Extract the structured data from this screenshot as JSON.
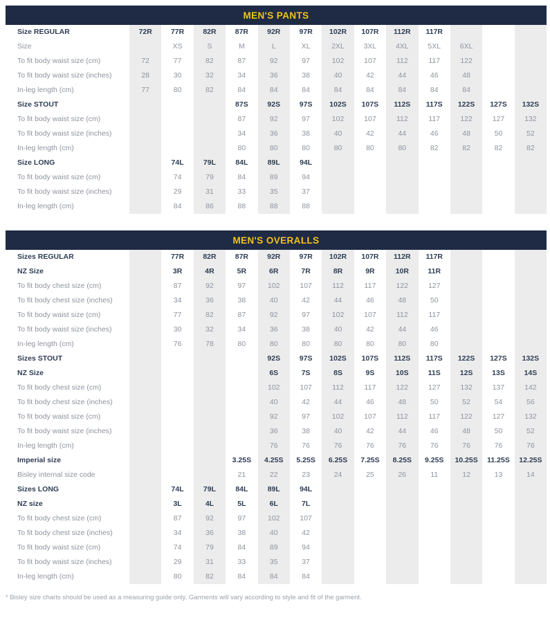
{
  "colors": {
    "header_bg": "#1f2a44",
    "header_text": "#f2c318",
    "bold_text": "#2e3d54",
    "muted_text": "#8e939d",
    "stripe": "#ececec"
  },
  "footnote": "* Bisley size charts should be used as a measuring guide only. Garments will vary according to style and fit of the garment.",
  "tables": [
    {
      "title": "MEN'S PANTS",
      "rows": [
        {
          "label": "Size REGULAR",
          "header": true,
          "values": [
            "72R",
            "77R",
            "82R",
            "87R",
            "92R",
            "97R",
            "102R",
            "107R",
            "112R",
            "117R",
            "",
            "",
            ""
          ]
        },
        {
          "label": "Size",
          "header": false,
          "values": [
            "",
            "XS",
            "S",
            "M",
            "L",
            "XL",
            "2XL",
            "3XL",
            "4XL",
            "5XL",
            "6XL",
            "",
            ""
          ]
        },
        {
          "label": "To fit body waist size (cm)",
          "header": false,
          "values": [
            "72",
            "77",
            "82",
            "87",
            "92",
            "97",
            "102",
            "107",
            "112",
            "117",
            "122",
            "",
            ""
          ]
        },
        {
          "label": "To fit body waist size (inches)",
          "header": false,
          "values": [
            "28",
            "30",
            "32",
            "34",
            "36",
            "38",
            "40",
            "42",
            "44",
            "46",
            "48",
            "",
            ""
          ]
        },
        {
          "label": "In-leg length (cm)",
          "header": false,
          "values": [
            "77",
            "80",
            "82",
            "84",
            "84",
            "84",
            "84",
            "84",
            "84",
            "84",
            "84",
            "",
            ""
          ]
        },
        {
          "label": "Size STOUT",
          "header": true,
          "values": [
            "",
            "",
            "",
            "87S",
            "92S",
            "97S",
            "102S",
            "107S",
            "112S",
            "117S",
            "122S",
            "127S",
            "132S"
          ]
        },
        {
          "label": "To fit body waist size (cm)",
          "header": false,
          "values": [
            "",
            "",
            "",
            "87",
            "92",
            "97",
            "102",
            "107",
            "112",
            "117",
            "122",
            "127",
            "132"
          ]
        },
        {
          "label": "To fit body waist size (inches)",
          "header": false,
          "values": [
            "",
            "",
            "",
            "34",
            "36",
            "38",
            "40",
            "42",
            "44",
            "46",
            "48",
            "50",
            "52"
          ]
        },
        {
          "label": "In-leg length (cm)",
          "header": false,
          "values": [
            "",
            "",
            "",
            "80",
            "80",
            "80",
            "80",
            "80",
            "80",
            "82",
            "82",
            "82",
            "82"
          ]
        },
        {
          "label": "Size LONG",
          "header": true,
          "values": [
            "",
            "74L",
            "79L",
            "84L",
            "89L",
            "94L",
            "",
            "",
            "",
            "",
            "",
            "",
            ""
          ]
        },
        {
          "label": "To fit body waist size (cm)",
          "header": false,
          "values": [
            "",
            "74",
            "79",
            "84",
            "89",
            "94",
            "",
            "",
            "",
            "",
            "",
            "",
            ""
          ]
        },
        {
          "label": "To fit body waist size (inches)",
          "header": false,
          "values": [
            "",
            "29",
            "31",
            "33",
            "35",
            "37",
            "",
            "",
            "",
            "",
            "",
            "",
            ""
          ]
        },
        {
          "label": "In-leg length (cm)",
          "header": false,
          "values": [
            "",
            "84",
            "86",
            "88",
            "88",
            "88",
            "",
            "",
            "",
            "",
            "",
            "",
            ""
          ]
        }
      ]
    },
    {
      "title": "MEN'S OVERALLS",
      "rows": [
        {
          "label": "Sizes REGULAR",
          "header": true,
          "values": [
            "",
            "77R",
            "82R",
            "87R",
            "92R",
            "97R",
            "102R",
            "107R",
            "112R",
            "117R",
            "",
            "",
            ""
          ]
        },
        {
          "label": "NZ Size",
          "header": true,
          "values": [
            "",
            "3R",
            "4R",
            "5R",
            "6R",
            "7R",
            "8R",
            "9R",
            "10R",
            "11R",
            "",
            "",
            ""
          ]
        },
        {
          "label": "To fit body chest size (cm)",
          "header": false,
          "values": [
            "",
            "87",
            "92",
            "97",
            "102",
            "107",
            "112",
            "117",
            "122",
            "127",
            "",
            "",
            ""
          ]
        },
        {
          "label": "To fit body chest size (inches)",
          "header": false,
          "values": [
            "",
            "34",
            "36",
            "38",
            "40",
            "42",
            "44",
            "46",
            "48",
            "50",
            "",
            "",
            ""
          ]
        },
        {
          "label": "To fit body waist size (cm)",
          "header": false,
          "values": [
            "",
            "77",
            "82",
            "87",
            "92",
            "97",
            "102",
            "107",
            "112",
            "117",
            "",
            "",
            ""
          ]
        },
        {
          "label": "To fit body waist size (inches)",
          "header": false,
          "values": [
            "",
            "30",
            "32",
            "34",
            "36",
            "38",
            "40",
            "42",
            "44",
            "46",
            "",
            "",
            ""
          ]
        },
        {
          "label": "In-leg length (cm)",
          "header": false,
          "values": [
            "",
            "76",
            "78",
            "80",
            "80",
            "80",
            "80",
            "80",
            "80",
            "80",
            "",
            "",
            ""
          ]
        },
        {
          "label": "Sizes STOUT",
          "header": true,
          "values": [
            "",
            "",
            "",
            "",
            "92S",
            "97S",
            "102S",
            "107S",
            "112S",
            "117S",
            "122S",
            "127S",
            "132S"
          ]
        },
        {
          "label": "NZ Size",
          "header": true,
          "values": [
            "",
            "",
            "",
            "",
            "6S",
            "7S",
            "8S",
            "9S",
            "10S",
            "11S",
            "12S",
            "13S",
            "14S"
          ]
        },
        {
          "label": "To fit body chest size (cm)",
          "header": false,
          "values": [
            "",
            "",
            "",
            "",
            "102",
            "107",
            "112",
            "117",
            "122",
            "127",
            "132",
            "137",
            "142"
          ]
        },
        {
          "label": "To fit body chest size (inches)",
          "header": false,
          "values": [
            "",
            "",
            "",
            "",
            "40",
            "42",
            "44",
            "46",
            "48",
            "50",
            "52",
            "54",
            "56"
          ]
        },
        {
          "label": "To fit body waist size (cm)",
          "header": false,
          "values": [
            "",
            "",
            "",
            "",
            "92",
            "97",
            "102",
            "107",
            "112",
            "117",
            "122",
            "127",
            "132"
          ]
        },
        {
          "label": "To fit body waist size (inches)",
          "header": false,
          "values": [
            "",
            "",
            "",
            "",
            "36",
            "38",
            "40",
            "42",
            "44",
            "46",
            "48",
            "50",
            "52"
          ]
        },
        {
          "label": "In-leg length (cm)",
          "header": false,
          "values": [
            "",
            "",
            "",
            "",
            "76",
            "76",
            "76",
            "76",
            "76",
            "76",
            "76",
            "76",
            "76"
          ]
        },
        {
          "label": "Imperial size",
          "header": true,
          "values": [
            "",
            "",
            "",
            "3.25S",
            "4.25S",
            "5.25S",
            "6.25S",
            "7.25S",
            "8.25S",
            "9.25S",
            "10.25S",
            "11.25S",
            "12.25S"
          ]
        },
        {
          "label": "Bisley internal size code",
          "header": false,
          "values": [
            "",
            "",
            "",
            "21",
            "22",
            "23",
            "24",
            "25",
            "26",
            "11",
            "12",
            "13",
            "14"
          ]
        },
        {
          "label": "Sizes LONG",
          "header": true,
          "values": [
            "",
            "74L",
            "79L",
            "84L",
            "89L",
            "94L",
            "",
            "",
            "",
            "",
            "",
            "",
            ""
          ]
        },
        {
          "label": "NZ size",
          "header": true,
          "values": [
            "",
            "3L",
            "4L",
            "5L",
            "6L",
            "7L",
            "",
            "",
            "",
            "",
            "",
            "",
            ""
          ]
        },
        {
          "label": "To fit body chest size (cm)",
          "header": false,
          "values": [
            "",
            "87",
            "92",
            "97",
            "102",
            "107",
            "",
            "",
            "",
            "",
            "",
            "",
            ""
          ]
        },
        {
          "label": "To fit body chest size (inches)",
          "header": false,
          "values": [
            "",
            "34",
            "36",
            "38",
            "40",
            "42",
            "",
            "",
            "",
            "",
            "",
            "",
            ""
          ]
        },
        {
          "label": "To fit body waist size (cm)",
          "header": false,
          "values": [
            "",
            "74",
            "79",
            "84",
            "89",
            "94",
            "",
            "",
            "",
            "",
            "",
            "",
            ""
          ]
        },
        {
          "label": "To fit body waist size (inches)",
          "header": false,
          "values": [
            "",
            "29",
            "31",
            "33",
            "35",
            "37",
            "",
            "",
            "",
            "",
            "",
            "",
            ""
          ]
        },
        {
          "label": "In-leg length (cm)",
          "header": false,
          "values": [
            "",
            "80",
            "82",
            "84",
            "84",
            "84",
            "",
            "",
            "",
            "",
            "",
            "",
            ""
          ]
        }
      ]
    }
  ]
}
